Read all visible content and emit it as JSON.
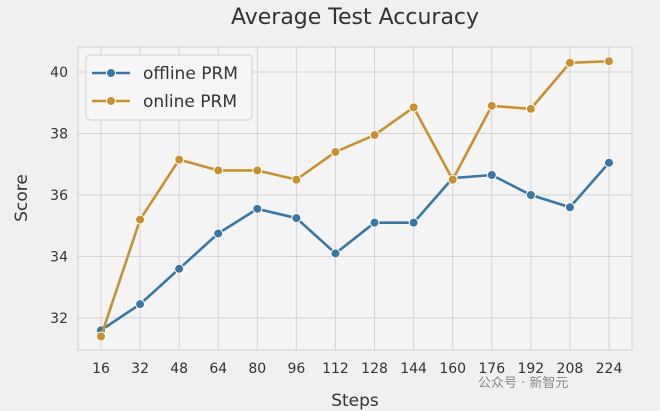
{
  "chart_data": {
    "type": "line",
    "title": "Average Test Accuracy",
    "xlabel": "Steps",
    "ylabel": "Score",
    "x": [
      16,
      32,
      48,
      64,
      80,
      96,
      112,
      128,
      144,
      160,
      176,
      192,
      208,
      224
    ],
    "ylim": [
      31.1,
      40.8
    ],
    "yticks": [
      32,
      34,
      36,
      38,
      40
    ],
    "grid": true,
    "legend_position": "top-left",
    "series": [
      {
        "name": "offline PRM",
        "color": "#3a76a4",
        "values": [
          31.6,
          32.45,
          33.6,
          34.75,
          35.55,
          35.25,
          34.1,
          35.1,
          35.1,
          36.55,
          36.65,
          36.0,
          35.6,
          37.05
        ]
      },
      {
        "name": "online PRM",
        "color": "#c8912f",
        "values": [
          31.4,
          35.2,
          37.15,
          36.8,
          36.8,
          36.5,
          37.4,
          37.95,
          38.85,
          36.5,
          38.9,
          38.8,
          40.3,
          40.35
        ]
      }
    ]
  },
  "watermark": "公众号 · 新智元"
}
